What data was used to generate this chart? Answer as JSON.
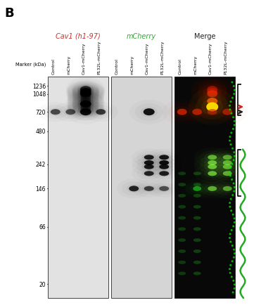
{
  "title_b": "B",
  "panel_titles": [
    "Cav1 (h1-97)",
    "mCherry",
    "Merge"
  ],
  "panel_title_colors": [
    "#cc3333",
    "#33aa33",
    "#222222"
  ],
  "lane_labels": [
    "Control",
    "mCherry",
    "Cav1-mCherry",
    "P132L-mCherry"
  ],
  "marker_label": "Marker (kDa)",
  "marker_values": [
    1236,
    1048,
    720,
    480,
    242,
    146,
    66,
    20
  ],
  "bg_color": "#ffffff",
  "bracket_color": "#000000",
  "red_arrow_color": "#cc2222",
  "black_arrow_color": "#222222",
  "green_arrow_color": "#22aa22",
  "fig_width": 3.71,
  "fig_height": 4.35
}
